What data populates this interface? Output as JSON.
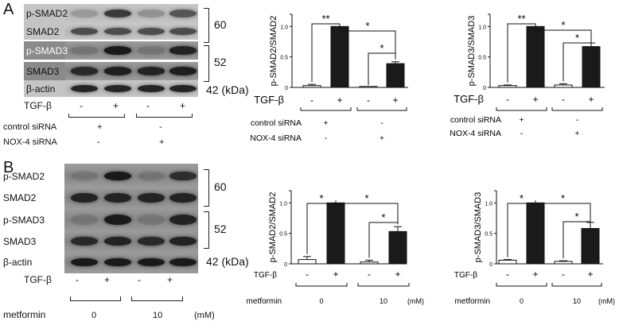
{
  "panelA": {
    "letter": "A",
    "blot_rows": [
      {
        "label": "p-SMAD2",
        "lanes": [
          0.05,
          0.75,
          0.1,
          0.55
        ]
      },
      {
        "label": "SMAD2",
        "lanes": [
          0.6,
          0.6,
          0.6,
          0.6
        ]
      },
      {
        "label": "p-SMAD3",
        "lanes": [
          0.02,
          0.95,
          0.03,
          0.85
        ]
      },
      {
        "label": "SMAD3",
        "lanes": [
          0.8,
          0.9,
          0.85,
          0.9
        ]
      },
      {
        "label": "β-actin",
        "lanes": [
          0.9,
          0.9,
          0.9,
          0.9
        ]
      }
    ],
    "mw": [
      "60",
      "52",
      "42 (kDa)"
    ],
    "tgf_label": "TGF-β",
    "tgf_signs": [
      "-",
      "+",
      "-",
      "+"
    ],
    "control_label": "control siRNA",
    "control_signs": [
      "+",
      "-"
    ],
    "nox_label": "NOX-4 siRNA",
    "nox_signs": [
      "-",
      "+"
    ]
  },
  "panelB": {
    "letter": "B",
    "blot_rows": [
      {
        "label": "p-SMAD2",
        "lanes": [
          0.02,
          0.95,
          0.03,
          0.75
        ]
      },
      {
        "label": "SMAD2",
        "lanes": [
          0.85,
          0.85,
          0.85,
          0.85
        ]
      },
      {
        "label": "p-SMAD3",
        "lanes": [
          0.02,
          0.95,
          0.03,
          0.85
        ]
      },
      {
        "label": "SMAD3",
        "lanes": [
          0.8,
          0.85,
          0.8,
          0.85
        ]
      },
      {
        "label": "β-actin",
        "lanes": [
          0.95,
          0.95,
          0.95,
          0.95
        ]
      }
    ],
    "mw": [
      "60",
      "52",
      "42 (kDa)"
    ],
    "tgf_label": "TGF-β",
    "tgf_signs": [
      "-",
      "+",
      "-",
      "+"
    ],
    "metformin_label": "metformin",
    "metformin_doses": [
      "0",
      "10"
    ],
    "unit": "(mM)"
  },
  "chart_data": [
    {
      "type": "bar",
      "ylabel": "p-SMAD2/SMAD2",
      "ylim": [
        0,
        1.2
      ],
      "yticks": [
        "0",
        "0.5",
        "1.0"
      ],
      "categories": [
        "TGF-β - / control siRNA",
        "TGF-β + / control siRNA",
        "TGF-β - / NOX-4 siRNA",
        "TGF-β + / NOX-4 siRNA"
      ],
      "values": [
        0.03,
        1.0,
        0.0,
        0.39
      ],
      "errors": [
        0.02,
        0.0,
        0.0,
        0.03
      ],
      "significance": [
        {
          "between": [
            0,
            1
          ],
          "label": "**"
        },
        {
          "between": [
            1,
            3
          ],
          "label": "*"
        },
        {
          "between": [
            2,
            3
          ],
          "label": "*"
        }
      ],
      "row_labels": {
        "tgf": "TGF-β",
        "group1": "control siRNA",
        "group2": "NOX-4 siRNA"
      },
      "tgf_signs": [
        "-",
        "+",
        "-",
        "+"
      ],
      "group1_signs": [
        "+",
        "-"
      ],
      "group2_signs": [
        "-",
        "+"
      ],
      "fills": [
        "#ffffff",
        "#1a1a1a",
        "#ffffff",
        "#1a1a1a"
      ]
    },
    {
      "type": "bar",
      "ylabel": "p-SMAD3/SMAD3",
      "ylim": [
        0,
        1.2
      ],
      "yticks": [
        "0",
        "0.5",
        "1.0"
      ],
      "categories": [
        "TGF-β - / control siRNA",
        "TGF-β + / control siRNA",
        "TGF-β - / NOX-4 siRNA",
        "TGF-β + / NOX-4 siRNA"
      ],
      "values": [
        0.03,
        1.0,
        0.04,
        0.67
      ],
      "errors": [
        0.01,
        0.0,
        0.02,
        0.06
      ],
      "significance": [
        {
          "between": [
            0,
            1
          ],
          "label": "**"
        },
        {
          "between": [
            1,
            3
          ],
          "label": "*"
        },
        {
          "between": [
            2,
            3
          ],
          "label": "*"
        }
      ],
      "row_labels": {
        "tgf": "TGF-β",
        "group1": "control siRNA",
        "group2": "NOX-4 siRNA"
      },
      "tgf_signs": [
        "-",
        "+",
        "-",
        "+"
      ],
      "group1_signs": [
        "+",
        "-"
      ],
      "group2_signs": [
        "-",
        "+"
      ],
      "fills": [
        "#ffffff",
        "#1a1a1a",
        "#ffffff",
        "#1a1a1a"
      ]
    },
    {
      "type": "bar",
      "ylabel": "p-SMAD2/SMAD2",
      "ylim": [
        0,
        1.2
      ],
      "yticks": [
        "0",
        "0.5",
        "1.0"
      ],
      "categories": [
        "TGF-β - / metformin 0",
        "TGF-β + / metformin 0",
        "TGF-β - / metformin 10",
        "TGF-β + / metformin 10"
      ],
      "values": [
        0.07,
        1.0,
        0.03,
        0.53
      ],
      "errors": [
        0.05,
        0.0,
        0.03,
        0.08
      ],
      "significance": [
        {
          "between": [
            0,
            1
          ],
          "label": "*"
        },
        {
          "between": [
            1,
            3
          ],
          "label": "*"
        },
        {
          "between": [
            2,
            3
          ],
          "label": "*"
        }
      ],
      "row_labels": {
        "tgf": "TGF-β",
        "metformin": "metformin",
        "unit": "(mM)"
      },
      "tgf_signs": [
        "-",
        "+",
        "-",
        "+"
      ],
      "doses": [
        "0",
        "10"
      ],
      "fills": [
        "#ffffff",
        "#1a1a1a",
        "#ffffff",
        "#1a1a1a"
      ]
    },
    {
      "type": "bar",
      "ylabel": "p-SMAD3/SMAD3",
      "ylim": [
        0,
        1.2
      ],
      "yticks": [
        "0",
        "0.5",
        "1.0"
      ],
      "categories": [
        "TGF-β - / metformin 0",
        "TGF-β + / metformin 0",
        "TGF-β - / metformin 10",
        "TGF-β + / metformin 10"
      ],
      "values": [
        0.06,
        1.0,
        0.04,
        0.58
      ],
      "errors": [
        0.01,
        0.0,
        0.01,
        0.1
      ],
      "significance": [
        {
          "between": [
            0,
            1
          ],
          "label": "*"
        },
        {
          "between": [
            1,
            3
          ],
          "label": "*"
        },
        {
          "between": [
            2,
            3
          ],
          "label": "*"
        }
      ],
      "row_labels": {
        "tgf": "TGF-β",
        "metformin": "metformin",
        "unit": "(mM)"
      },
      "tgf_signs": [
        "-",
        "+",
        "-",
        "+"
      ],
      "doses": [
        "0",
        "10"
      ],
      "fills": [
        "#ffffff",
        "#1a1a1a",
        "#ffffff",
        "#1a1a1a"
      ]
    }
  ]
}
